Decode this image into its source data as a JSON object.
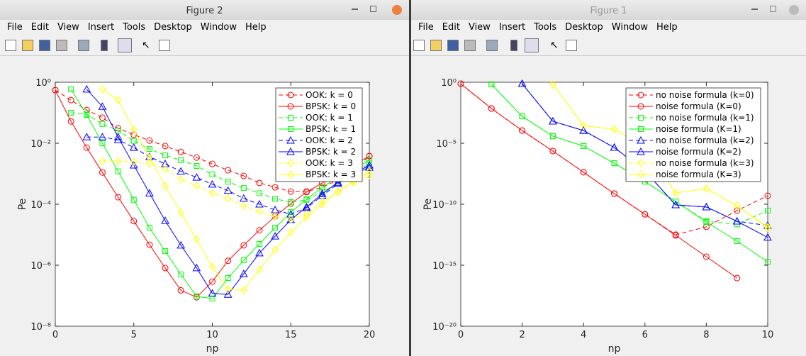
{
  "windows": [
    {
      "title": "Figure 2",
      "menu": [
        "File",
        "Edit",
        "View",
        "Insert",
        "Tools",
        "Desktop",
        "Window",
        "Help"
      ]
    },
    {
      "title": "Figure 1",
      "menu": [
        "File",
        "Edit",
        "View",
        "Insert",
        "Tools",
        "Desktop",
        "Window",
        "Help"
      ]
    }
  ],
  "chart_data": [
    {
      "type": "line",
      "xlabel": "np",
      "ylabel": "Pe",
      "x": [
        0,
        1,
        2,
        3,
        4,
        5,
        6,
        7,
        8,
        9,
        10,
        11,
        12,
        13,
        14,
        15,
        16,
        17,
        18,
        19,
        20
      ],
      "xlim": [
        0,
        20
      ],
      "xticks": [
        0,
        5,
        10,
        15,
        20
      ],
      "ylim": [
        1e-08,
        1
      ],
      "yscale": "log",
      "yticks": [
        {
          "value": 1,
          "label": "10⁰"
        },
        {
          "value": 0.01,
          "label": "10⁻²"
        },
        {
          "value": 0.0001,
          "label": "10⁻⁴"
        },
        {
          "value": 1e-06,
          "label": "10⁻⁶"
        },
        {
          "value": 1e-08,
          "label": "10⁻⁸"
        }
      ],
      "legend": "top-right",
      "series": [
        {
          "name": "OOK: k = 0",
          "color": "#ff0000",
          "line": "dashed",
          "marker": "circle",
          "values": [
            0.55,
            0.26,
            0.123,
            0.069,
            0.031,
            0.019,
            0.0123,
            0.0081,
            0.0052,
            0.0034,
            0.0021,
            0.0013,
            0.00085,
            0.0005,
            0.00036,
            0.00026,
            0.00026,
            0.00036,
            0.00062,
            0.0013,
            0.0038
          ]
        },
        {
          "name": "BPSK: k = 0",
          "color": "#ff0000",
          "line": "solid",
          "marker": "circle",
          "values": [
            0.55,
            0.052,
            0.0072,
            0.0011,
            0.00017,
            2.8e-05,
            4.7e-06,
            8.1e-07,
            1.5e-07,
            8.9e-08,
            2.9e-07,
            1.4e-06,
            4.5e-06,
            1.4e-05,
            4e-05,
            0.000105,
            0.00025,
            0.0005,
            0.00105,
            0.0019,
            0.0038
          ]
        },
        {
          "name": "OOK: k = 1",
          "color": "#00ff00",
          "line": "dashed",
          "marker": "square",
          "values": [
            null,
            0.1,
            0.089,
            0.043,
            0.026,
            0.012,
            0.0065,
            0.004,
            0.0028,
            0.0018,
            0.00095,
            0.00055,
            0.00034,
            0.00023,
            0.00015,
            0.000117,
            0.00014,
            0.00025,
            0.0005,
            0.0011,
            0.0022
          ]
        },
        {
          "name": "BPSK: k = 1",
          "color": "#00ff00",
          "line": "solid",
          "marker": "square",
          "values": [
            null,
            0.59,
            0.085,
            0.01,
            0.0012,
            0.00014,
            1.7e-05,
            2.9e-06,
            5e-07,
            9.5e-08,
            8.1e-08,
            3.8e-07,
            1.45e-06,
            5e-06,
            1.7e-05,
            5.5e-05,
            0.000145,
            0.00036,
            0.00076,
            0.00145,
            0.0028
          ]
        },
        {
          "name": "OOK: k = 2",
          "color": "#0000ff",
          "line": "dashed",
          "marker": "triangle",
          "values": [
            null,
            null,
            0.016,
            0.016,
            0.013,
            0.0072,
            0.0036,
            0.0021,
            0.0012,
            0.00076,
            0.00045,
            0.00028,
            0.000155,
            0.0001,
            6.5e-05,
            4.7e-05,
            7.6e-05,
            0.00019,
            0.00047,
            0.00095,
            0.0016
          ]
        },
        {
          "name": "BPSK: k = 2",
          "color": "#0000ff",
          "line": "solid",
          "marker": "triangle",
          "values": [
            null,
            null,
            0.59,
            0.16,
            0.016,
            0.0019,
            0.00023,
            2.9e-05,
            4.5e-06,
            8.1e-07,
            1.2e-07,
            1.1e-07,
            5.2e-07,
            2.5e-06,
            8.9e-06,
            3.1e-05,
            8.1e-05,
            0.00022,
            0.00052,
            0.001,
            0.0019
          ]
        },
        {
          "name": "OOK: k = 3",
          "color": "#ffff00",
          "line": "dashed",
          "marker": "diamond",
          "values": [
            null,
            null,
            null,
            0.0026,
            0.0026,
            0.0025,
            0.0022,
            0.0014,
            0.00065,
            0.0004,
            0.00023,
            0.000155,
            8.9e-05,
            5.9e-05,
            4e-05,
            3.2e-05,
            4.7e-05,
            0.00012,
            0.00025,
            0.00052,
            0.0009
          ]
        },
        {
          "name": "BPSK: k = 3",
          "color": "#ffff00",
          "line": "solid",
          "marker": "diamond",
          "values": [
            null,
            null,
            null,
            0.59,
            0.26,
            0.028,
            0.0034,
            0.0004,
            5.3e-05,
            6.9e-06,
            8.9e-07,
            1.6e-07,
            1.5e-07,
            7.2e-07,
            3.2e-06,
            1.2e-05,
            3.8e-05,
            0.0001,
            0.00026,
            0.00059,
            0.0012
          ]
        }
      ]
    },
    {
      "type": "line",
      "xlabel": "np",
      "ylabel": "Pe",
      "x": [
        0,
        1,
        2,
        3,
        4,
        5,
        6,
        7,
        8,
        9,
        10
      ],
      "xlim": [
        0,
        10
      ],
      "xticks": [
        0,
        2,
        4,
        6,
        8,
        10
      ],
      "ylim": [
        1e-20,
        1
      ],
      "yscale": "log",
      "yticks": [
        {
          "value": 1,
          "label": "10⁰"
        },
        {
          "value": 1e-05,
          "label": "10⁻⁵"
        },
        {
          "value": 1e-10,
          "label": "10⁻¹⁰"
        },
        {
          "value": 1e-15,
          "label": "10⁻¹⁵"
        },
        {
          "value": 1e-20,
          "label": "10⁻²⁰"
        }
      ],
      "legend": "top-right",
      "series": [
        {
          "name": "no noise formula (k=0)",
          "color": "#ff0000",
          "line": "dashed",
          "marker": "circle",
          "values": [
            0.76,
            0.0071,
            0.00011,
            2.3e-06,
            4.2e-08,
            7.4e-10,
            1.5e-11,
            3.2e-13,
            1.4e-12,
            3e-11,
            5e-10
          ]
        },
        {
          "name": "noise formula (K=0)",
          "color": "#ff0000",
          "line": "solid",
          "marker": "circle",
          "values": [
            0.76,
            0.0071,
            0.00011,
            2.3e-06,
            4.2e-08,
            7.4e-10,
            1.5e-11,
            2.8e-13,
            5e-15,
            8.9e-17,
            null
          ]
        },
        {
          "name": "no noise formula (k=1)",
          "color": "#00ff00",
          "line": "dashed",
          "marker": "square",
          "values": [
            null,
            0.68,
            0.0016,
            3.8e-05,
            5.9e-06,
            2.3e-07,
            7.2e-09,
            1.7e-10,
            4e-12,
            2.3e-12,
            3e-11
          ]
        },
        {
          "name": "noise formula (K=1)",
          "color": "#00ff00",
          "line": "solid",
          "marker": "square",
          "values": [
            null,
            0.68,
            0.0016,
            3.8e-05,
            5.9e-06,
            2.3e-07,
            7.2e-09,
            1.7e-10,
            3.5e-12,
            9.5e-14,
            1.9e-15
          ]
        },
        {
          "name": "no noise formula (k=2)",
          "color": "#0000ff",
          "line": "dashed",
          "marker": "triangle",
          "values": [
            null,
            null,
            0.76,
            0.00063,
            0.00011,
            4.5e-06,
            5.4e-08,
            8.7e-11,
            5.9e-11,
            4e-12,
            1.8e-12
          ]
        },
        {
          "name": "noise formula (K=2)",
          "color": "#0000ff",
          "line": "solid",
          "marker": "triangle",
          "values": [
            null,
            null,
            0.76,
            0.00063,
            0.00011,
            4.5e-06,
            5.4e-08,
            8.7e-11,
            5.9e-11,
            4e-12,
            1.9e-13
          ]
        },
        {
          "name": "no noise formula (k=3)",
          "color": "#ffff00",
          "line": "dashed",
          "marker": "diamond",
          "values": [
            null,
            null,
            null,
            0.68,
            0.00028,
            0.00014,
            5.1e-06,
            8.5e-10,
            1.9e-09,
            7.6e-11,
            1.4e-12
          ]
        },
        {
          "name": "noise formula (K=3)",
          "color": "#ffff00",
          "line": "solid",
          "marker": "diamond",
          "values": [
            null,
            null,
            null,
            0.68,
            0.00028,
            0.00014,
            5.1e-06,
            8.5e-10,
            1.9e-09,
            7.6e-11,
            1.2e-12
          ]
        }
      ]
    }
  ]
}
